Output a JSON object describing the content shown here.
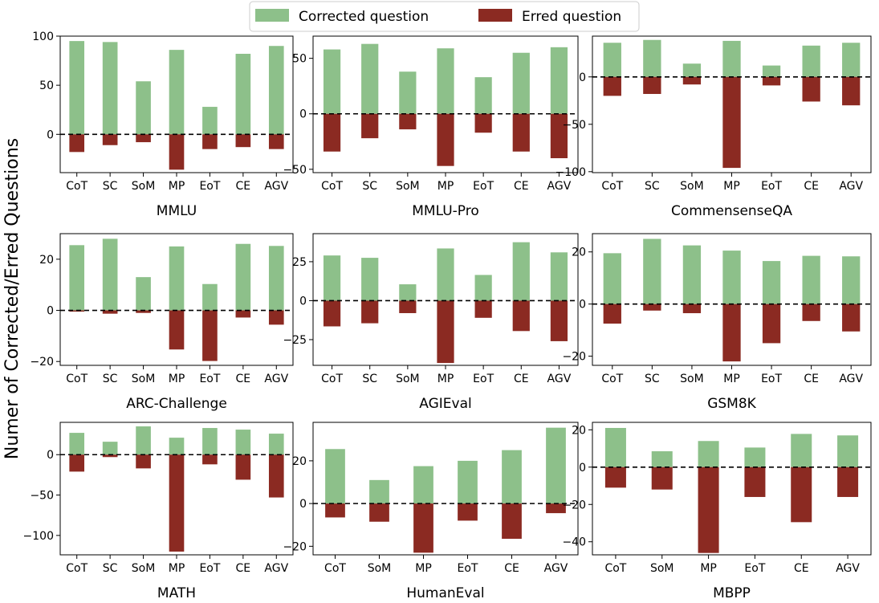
{
  "figure": {
    "ylabel": "Numer of Corrected/Erred Questions",
    "legend": {
      "placement": "top-center",
      "entries": [
        {
          "name": "Corrected question",
          "color": "#8dc08a"
        },
        {
          "name": "Erred question",
          "color": "#8b2a22"
        }
      ]
    }
  },
  "chart_data": [
    {
      "type": "bar",
      "title": "MMLU",
      "categories": [
        "CoT",
        "SC",
        "SoM",
        "MP",
        "EoT",
        "CE",
        "AGV"
      ],
      "series": [
        {
          "name": "Corrected question",
          "values": [
            95,
            94,
            54,
            86,
            28,
            82,
            90
          ]
        },
        {
          "name": "Erred question",
          "values": [
            -18,
            -11,
            -8,
            -36,
            -15,
            -13,
            -15
          ]
        }
      ],
      "ylim": [
        -39,
        100
      ],
      "yticks": [
        0,
        50,
        100
      ]
    },
    {
      "type": "bar",
      "title": "MMLU-Pro",
      "categories": [
        "CoT",
        "SC",
        "SoM",
        "MP",
        "EoT",
        "CE",
        "AGV"
      ],
      "series": [
        {
          "name": "Corrected question",
          "values": [
            58,
            63,
            38,
            59,
            33,
            55,
            60
          ]
        },
        {
          "name": "Erred question",
          "values": [
            -34,
            -22,
            -14,
            -47,
            -17,
            -34,
            -40
          ]
        }
      ],
      "ylim": [
        -53,
        70
      ],
      "yticks": [
        -50,
        0,
        50
      ]
    },
    {
      "type": "bar",
      "title": "CommensenseQA",
      "categories": [
        "CoT",
        "SC",
        "SoM",
        "MP",
        "EoT",
        "CE",
        "AGV"
      ],
      "series": [
        {
          "name": "Corrected question",
          "values": [
            36,
            39,
            14,
            38,
            12,
            33,
            36
          ]
        },
        {
          "name": "Erred question",
          "values": [
            -20,
            -18,
            -8,
            -96,
            -9,
            -26,
            -30
          ]
        }
      ],
      "ylim": [
        -101,
        43
      ],
      "yticks": [
        -100,
        -50,
        0
      ]
    },
    {
      "type": "bar",
      "title": "ARC-Challenge",
      "categories": [
        "CoT",
        "SC",
        "SoM",
        "MP",
        "EoT",
        "CE",
        "AGV"
      ],
      "series": [
        {
          "name": "Corrected question",
          "values": [
            25.5,
            28,
            13,
            25,
            10.3,
            26,
            25.2
          ]
        },
        {
          "name": "Erred question",
          "values": [
            -0.5,
            -1.3,
            -1,
            -15.3,
            -19.8,
            -2.8,
            -5.6
          ]
        }
      ],
      "ylim": [
        -21.5,
        30
      ],
      "yticks": [
        -20,
        0,
        20
      ]
    },
    {
      "type": "bar",
      "title": "AGIEval",
      "categories": [
        "CoT",
        "SC",
        "SoM",
        "MP",
        "EoT",
        "CE",
        "AGV"
      ],
      "series": [
        {
          "name": "Corrected question",
          "values": [
            29,
            27.5,
            10.5,
            33.5,
            16.5,
            37.5,
            31
          ]
        },
        {
          "name": "Erred question",
          "values": [
            -16.5,
            -14.5,
            -8,
            -40,
            -11,
            -19.5,
            -26
          ]
        }
      ],
      "ylim": [
        -41.5,
        43
      ],
      "yticks": [
        -25,
        0,
        25
      ]
    },
    {
      "type": "bar",
      "title": "GSM8K",
      "categories": [
        "CoT",
        "SC",
        "SoM",
        "MP",
        "EoT",
        "CE",
        "AGV"
      ],
      "series": [
        {
          "name": "Corrected question",
          "values": [
            19.5,
            25,
            22.5,
            20.5,
            16.5,
            18.5,
            18.3
          ]
        },
        {
          "name": "Erred question",
          "values": [
            -7.5,
            -2.5,
            -3.5,
            -22,
            -15,
            -6.5,
            -10.5
          ]
        }
      ],
      "ylim": [
        -23.5,
        27
      ],
      "yticks": [
        -20,
        0,
        20
      ]
    },
    {
      "type": "bar",
      "title": "MATH",
      "categories": [
        "CoT",
        "SC",
        "SoM",
        "MP",
        "EoT",
        "CE",
        "AGV"
      ],
      "series": [
        {
          "name": "Corrected question",
          "values": [
            27,
            16,
            35,
            21,
            33,
            31,
            26
          ]
        },
        {
          "name": "Erred question",
          "values": [
            -21,
            -3,
            -17,
            -120,
            -12,
            -31,
            -53
          ]
        }
      ],
      "ylim": [
        -124,
        40
      ],
      "yticks": [
        -100,
        -50,
        0
      ]
    },
    {
      "type": "bar",
      "title": "HumanEval",
      "categories": [
        "CoT",
        "SoM",
        "MP",
        "EoT",
        "CE",
        "AGV"
      ],
      "series": [
        {
          "name": "Corrected question",
          "values": [
            25.5,
            11,
            17.5,
            20,
            25,
            35.5
          ]
        },
        {
          "name": "Erred question",
          "values": [
            -6.5,
            -8.5,
            -23,
            -8,
            -16.5,
            -4.5
          ]
        }
      ],
      "ylim": [
        -24,
        38
      ],
      "yticks": [
        -20,
        0,
        20
      ]
    },
    {
      "type": "bar",
      "title": "MBPP",
      "categories": [
        "CoT",
        "SoM",
        "MP",
        "EoT",
        "CE",
        "AGV"
      ],
      "series": [
        {
          "name": "Corrected question",
          "values": [
            21,
            8.5,
            14,
            10.5,
            17.8,
            17
          ]
        },
        {
          "name": "Erred question",
          "values": [
            -11,
            -12,
            -46,
            -16,
            -29.5,
            -16
          ]
        }
      ],
      "ylim": [
        -47,
        24
      ],
      "yticks": [
        -40,
        -20,
        0,
        20
      ]
    }
  ]
}
